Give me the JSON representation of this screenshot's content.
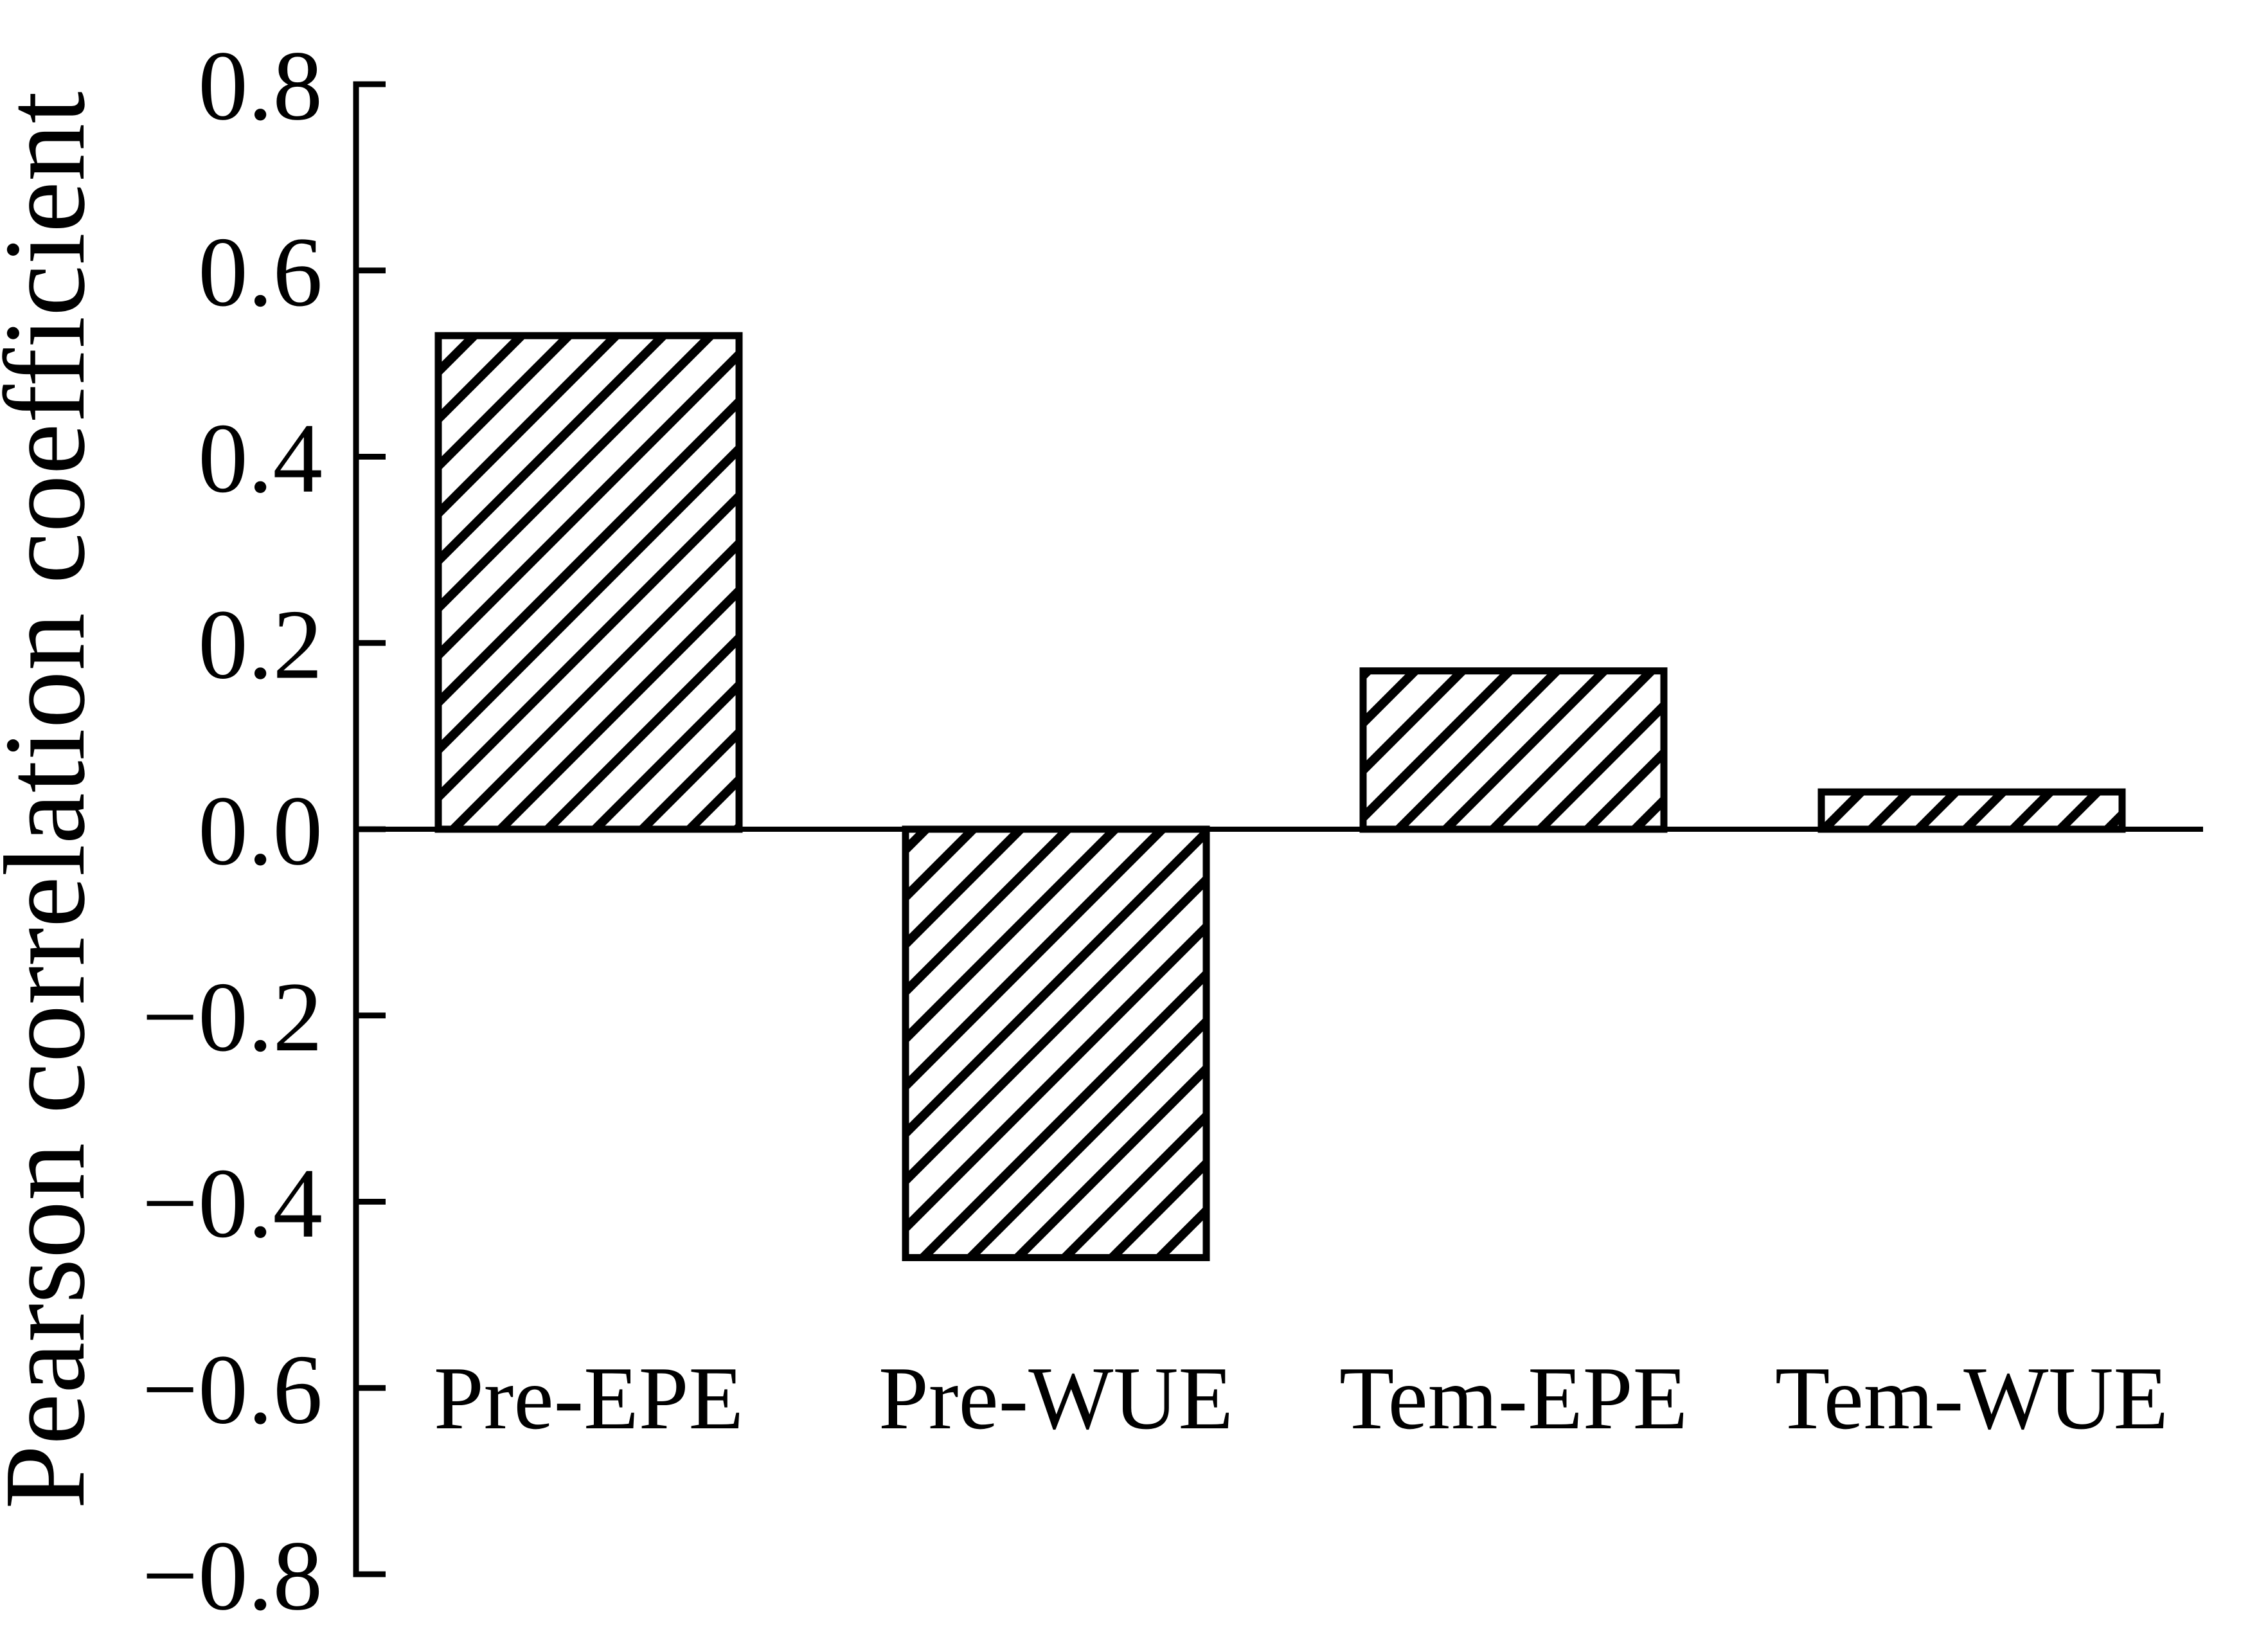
{
  "chart_data": {
    "type": "bar",
    "title": "",
    "categories": [
      "Pre-EPE",
      "Pre-WUE",
      "Tem-EPE",
      "Tem-WUE"
    ],
    "values": [
      0.53,
      -0.46,
      0.17,
      0.04
    ],
    "series": [
      {
        "name": "Pearson correlation coefficient",
        "values": [
          0.53,
          -0.46,
          0.17,
          0.04
        ]
      }
    ],
    "xlabel": "",
    "ylabel": "Pearson correlation coefficient",
    "ylim": [
      -0.8,
      0.8
    ],
    "ytick_step": 0.2,
    "yticks": [
      0.8,
      0.6,
      0.4,
      0.2,
      0.0,
      -0.2,
      -0.4,
      -0.6,
      -0.8
    ],
    "ytick_labels": [
      "0.8",
      "0.6",
      "0.4",
      "0.2",
      "0.0",
      "−0.2",
      "−0.4",
      "−0.6",
      "−0.8"
    ],
    "grid": false,
    "legend": null,
    "bar_style": {
      "fill": "#ffffff",
      "hatch": "diagonal-forward",
      "stroke": "#000000"
    },
    "colors": {
      "axis": "#000000",
      "text": "#000000",
      "background": "#ffffff"
    }
  }
}
